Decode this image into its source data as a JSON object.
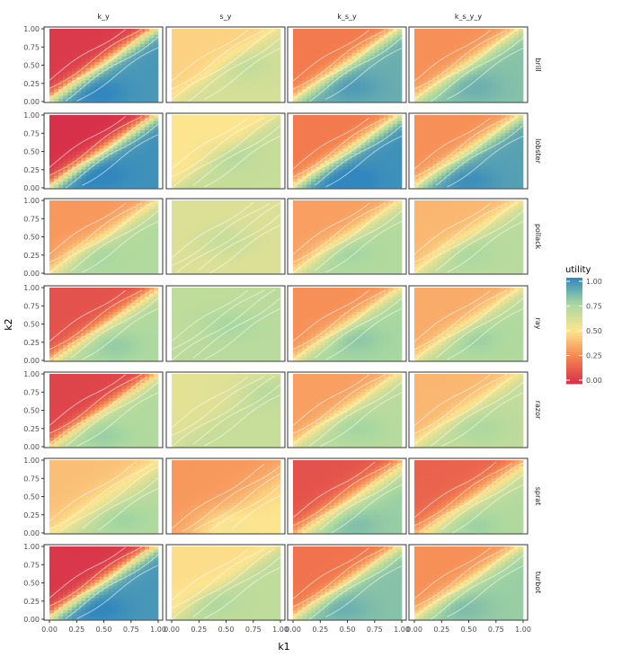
{
  "chart_data": {
    "type": "heatmap",
    "title": "",
    "xlabel": "k1",
    "ylabel": "k2",
    "xlim": [
      0,
      1
    ],
    "ylim": [
      0,
      1
    ],
    "x_ticks": [
      "0.00",
      "0.25",
      "0.50",
      "0.75",
      "1.00"
    ],
    "y_ticks": [
      "0.00",
      "0.25",
      "0.50",
      "0.75",
      "1.00"
    ],
    "columns": [
      "k_y",
      "s_y",
      "k_s_y",
      "k_s_y_y"
    ],
    "rows": [
      "brill",
      "lobster",
      "pollack",
      "ray",
      "razor",
      "sprat",
      "turbot"
    ],
    "legend": {
      "title": "utility",
      "range": [
        0,
        1
      ],
      "ticks": [
        "0.00",
        "0.25",
        "0.50",
        "0.75",
        "1.00"
      ],
      "position": "right",
      "colors": [
        "#d7304a",
        "#f6844f",
        "#fde58f",
        "#a8d8a0",
        "#3187be"
      ]
    },
    "grid": false,
    "contours": true,
    "panels": [
      {
        "row": "brill",
        "col": "k_y",
        "low": 0.03,
        "high": 0.95,
        "diag": 0.03,
        "spread": 0.15,
        "peak_u": 0.45,
        "peak_v": 0.12
      },
      {
        "row": "brill",
        "col": "s_y",
        "low": 0.45,
        "high": 0.62,
        "diag": 0.02,
        "spread": 0.14,
        "peak_u": 0.7,
        "peak_v": 0.5
      },
      {
        "row": "brill",
        "col": "k_s_y",
        "low": 0.22,
        "high": 0.88,
        "diag": 0.02,
        "spread": 0.15,
        "peak_u": 0.55,
        "peak_v": 0.2
      },
      {
        "row": "brill",
        "col": "k_s_y_y",
        "low": 0.28,
        "high": 0.82,
        "diag": 0.02,
        "spread": 0.16,
        "peak_u": 0.55,
        "peak_v": 0.2
      },
      {
        "row": "lobster",
        "col": "k_y",
        "low": 0.0,
        "high": 0.97,
        "diag": 0.02,
        "spread": 0.15,
        "peak_u": 0.4,
        "peak_v": 0.2
      },
      {
        "row": "lobster",
        "col": "s_y",
        "low": 0.5,
        "high": 0.66,
        "diag": 0.0,
        "spread": 0.12,
        "peak_u": 0.5,
        "peak_v": 0.45
      },
      {
        "row": "lobster",
        "col": "k_s_y",
        "low": 0.22,
        "high": 0.97,
        "diag": 0.0,
        "spread": 0.16,
        "peak_u": 0.5,
        "peak_v": 0.1
      },
      {
        "row": "lobster",
        "col": "k_s_y_y",
        "low": 0.28,
        "high": 0.92,
        "diag": 0.0,
        "spread": 0.16,
        "peak_u": 0.5,
        "peak_v": 0.1
      },
      {
        "row": "pollack",
        "col": "k_y",
        "low": 0.3,
        "high": 0.72,
        "diag": 0.0,
        "spread": 0.18,
        "peak_u": 0.35,
        "peak_v": 0.28
      },
      {
        "row": "pollack",
        "col": "s_y",
        "low": 0.6,
        "high": 0.6,
        "diag": -0.05,
        "spread": 0.14,
        "peak_u": 0.5,
        "peak_v": 0.45
      },
      {
        "row": "pollack",
        "col": "k_s_y",
        "low": 0.32,
        "high": 0.72,
        "diag": 0.0,
        "spread": 0.17,
        "peak_u": 0.45,
        "peak_v": 0.3
      },
      {
        "row": "pollack",
        "col": "k_s_y_y",
        "low": 0.38,
        "high": 0.7,
        "diag": 0.0,
        "spread": 0.18,
        "peak_u": 0.45,
        "peak_v": 0.3
      },
      {
        "row": "ray",
        "col": "k_y",
        "low": 0.1,
        "high": 0.73,
        "diag": 0.0,
        "spread": 0.16,
        "peak_u": 0.6,
        "peak_v": 0.2
      },
      {
        "row": "ray",
        "col": "s_y",
        "low": 0.68,
        "high": 0.7,
        "diag": 0.0,
        "spread": 0.12,
        "peak_u": 0.5,
        "peak_v": 0.5
      },
      {
        "row": "ray",
        "col": "k_s_y",
        "low": 0.28,
        "high": 0.75,
        "diag": 0.0,
        "spread": 0.16,
        "peak_u": 0.55,
        "peak_v": 0.3
      },
      {
        "row": "ray",
        "col": "k_s_y_y",
        "low": 0.35,
        "high": 0.72,
        "diag": 0.0,
        "spread": 0.17,
        "peak_u": 0.55,
        "peak_v": 0.3
      },
      {
        "row": "razor",
        "col": "k_y",
        "low": 0.06,
        "high": 0.72,
        "diag": 0.03,
        "spread": 0.15,
        "peak_u": 0.5,
        "peak_v": 0.15
      },
      {
        "row": "razor",
        "col": "s_y",
        "low": 0.58,
        "high": 0.66,
        "diag": 0.0,
        "spread": 0.16,
        "peak_u": 0.8,
        "peak_v": 0.8
      },
      {
        "row": "razor",
        "col": "k_s_y",
        "low": 0.32,
        "high": 0.7,
        "diag": 0.03,
        "spread": 0.16,
        "peak_u": 0.6,
        "peak_v": 0.25
      },
      {
        "row": "razor",
        "col": "k_s_y_y",
        "low": 0.38,
        "high": 0.68,
        "diag": 0.03,
        "spread": 0.17,
        "peak_u": 0.6,
        "peak_v": 0.25
      },
      {
        "row": "sprat",
        "col": "k_y",
        "low": 0.4,
        "high": 0.72,
        "diag": -0.1,
        "spread": 0.28,
        "peak_u": 0.65,
        "peak_v": 0.2
      },
      {
        "row": "sprat",
        "col": "s_y",
        "low": 0.3,
        "high": 0.5,
        "diag": -0.2,
        "spread": 0.3,
        "peak_u": 0.45,
        "peak_v": 0.15
      },
      {
        "row": "sprat",
        "col": "k_s_y",
        "low": 0.1,
        "high": 0.78,
        "diag": -0.05,
        "spread": 0.22,
        "peak_u": 0.55,
        "peak_v": 0.12
      },
      {
        "row": "sprat",
        "col": "k_s_y_y",
        "low": 0.15,
        "high": 0.72,
        "diag": -0.05,
        "spread": 0.22,
        "peak_u": 0.55,
        "peak_v": 0.12
      },
      {
        "row": "turbot",
        "col": "k_y",
        "low": 0.02,
        "high": 0.95,
        "diag": 0.03,
        "spread": 0.15,
        "peak_u": 0.45,
        "peak_v": 0.15
      },
      {
        "row": "turbot",
        "col": "s_y",
        "low": 0.48,
        "high": 0.68,
        "diag": 0.0,
        "spread": 0.14,
        "peak_u": 0.35,
        "peak_v": 0.25
      },
      {
        "row": "turbot",
        "col": "k_s_y",
        "low": 0.2,
        "high": 0.82,
        "diag": 0.02,
        "spread": 0.15,
        "peak_u": 0.45,
        "peak_v": 0.15
      },
      {
        "row": "turbot",
        "col": "k_s_y_y",
        "low": 0.28,
        "high": 0.78,
        "diag": 0.02,
        "spread": 0.16,
        "peak_u": 0.45,
        "peak_v": 0.15
      }
    ]
  }
}
